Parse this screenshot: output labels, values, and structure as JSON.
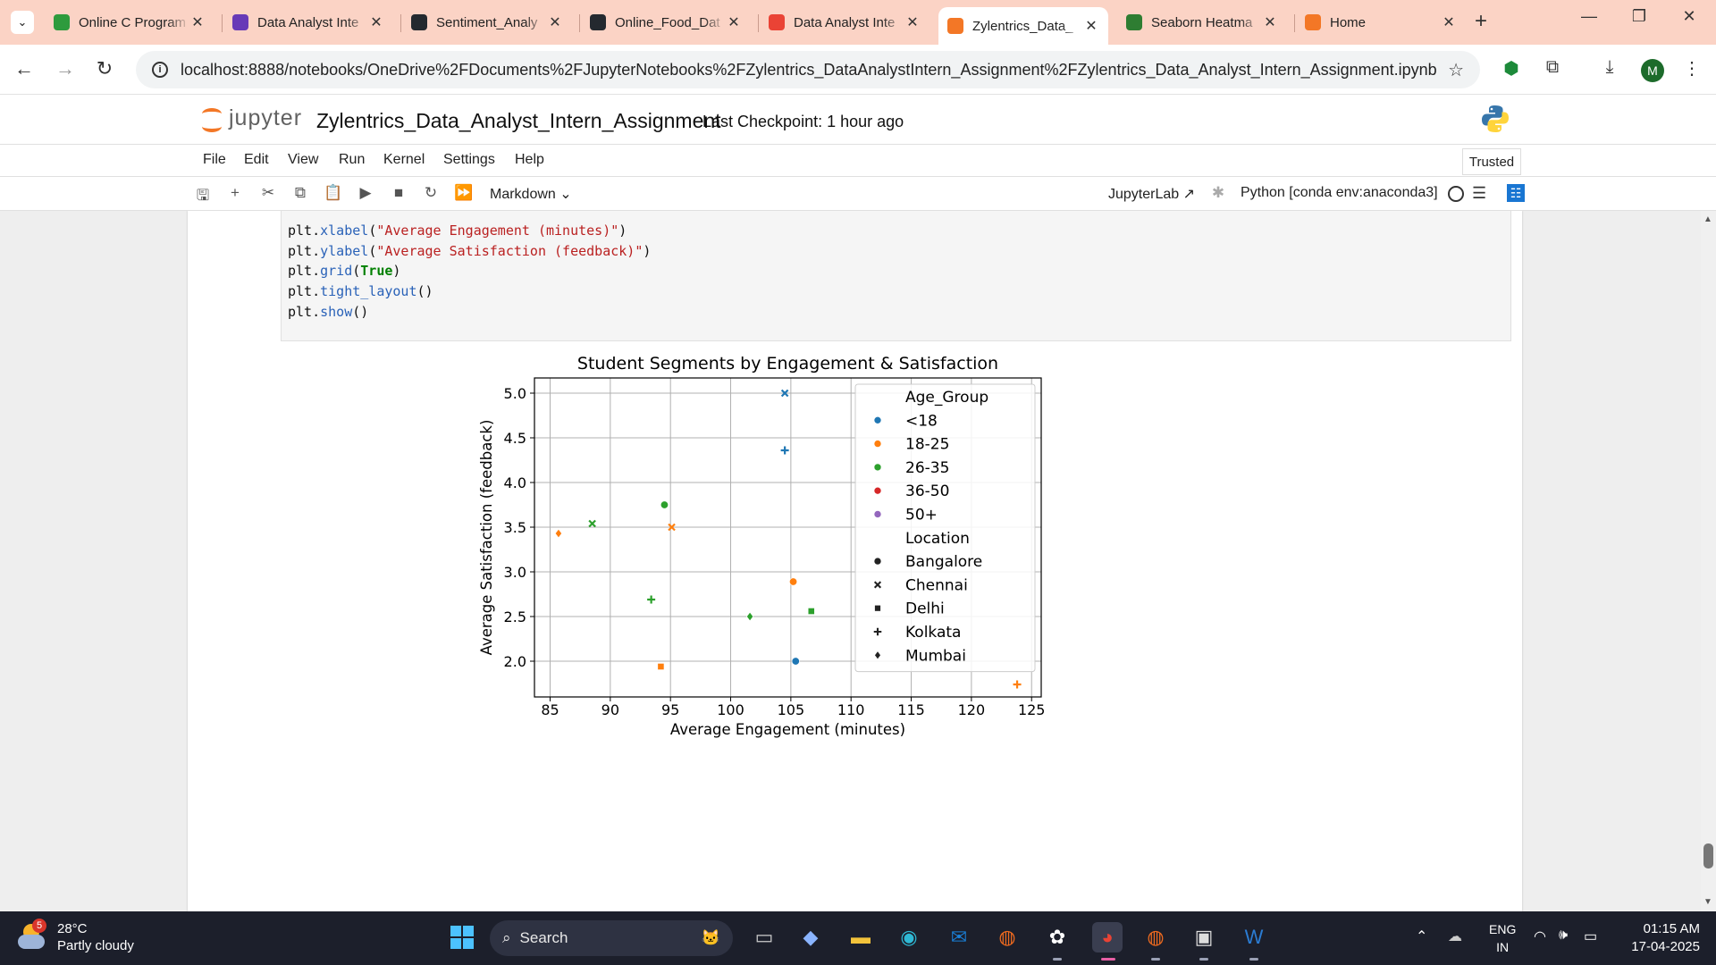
{
  "browser": {
    "tabs": [
      {
        "title": "Online C Program",
        "favicon": "online-compiler-icon",
        "color": "#2e9b3d"
      },
      {
        "title": "Data Analyst Inte",
        "favicon": "forms-icon",
        "color": "#673ab7"
      },
      {
        "title": "Sentiment_Analy",
        "favicon": "github-icon",
        "color": "#24292f"
      },
      {
        "title": "Online_Food_Dat",
        "favicon": "github-icon",
        "color": "#24292f"
      },
      {
        "title": "Data Analyst Inte",
        "favicon": "gmail-icon",
        "color": "#ea4335"
      },
      {
        "title": "Zylentrics_Data_",
        "favicon": "jupyter-icon",
        "color": "#f37726",
        "active": true
      },
      {
        "title": "Seaborn Heatma",
        "favicon": "seaborn-icon",
        "color": "#2e7d32"
      },
      {
        "title": "Home",
        "favicon": "jupyter-icon",
        "color": "#f37726"
      }
    ],
    "url": "localhost:8888/notebooks/OneDrive%2FDocuments%2FJupyterNotebooks%2FZylentrics_DataAnalystIntern_Assignment%2FZylentrics_Data_Analyst_Intern_Assignment.ipynb",
    "profile_initial": "M"
  },
  "jupyter": {
    "logo_text": "jupyter",
    "notebook_title": "Zylentrics_Data_Analyst_Intern_Assignment",
    "checkpoint": "Last Checkpoint: 1 hour ago",
    "menus": [
      "File",
      "Edit",
      "View",
      "Run",
      "Kernel",
      "Settings",
      "Help"
    ],
    "trusted": "Trusted",
    "cell_type": "Markdown",
    "jupyterlab_link": "JupyterLab",
    "kernel": "Python [conda env:anaconda3]"
  },
  "code_lines": [
    "plt.xlabel(\"Average Engagement (minutes)\")",
    "plt.ylabel(\"Average Satisfaction (feedback)\")",
    "plt.grid(True)",
    "plt.tight_layout()",
    "plt.show()"
  ],
  "chart_data": {
    "type": "scatter",
    "title": "Student Segments by Engagement & Satisfaction",
    "xlabel": "Average Engagement (minutes)",
    "ylabel": "Average Satisfaction (feedback)",
    "xlim": [
      83.7,
      125.8
    ],
    "ylim": [
      1.6,
      5.17
    ],
    "xticks": [
      85,
      90,
      95,
      100,
      105,
      110,
      115,
      120,
      125
    ],
    "yticks": [
      2.0,
      2.5,
      3.0,
      3.5,
      4.0,
      4.5,
      5.0
    ],
    "grid": true,
    "legend_position": "top-right",
    "hue_title": "Age_Group",
    "hue_levels": [
      {
        "name": "<18",
        "color": "#1f77b4"
      },
      {
        "name": "18-25",
        "color": "#ff7f0e"
      },
      {
        "name": "26-35",
        "color": "#2ca02c"
      },
      {
        "name": "36-50",
        "color": "#d62728"
      },
      {
        "name": "50+",
        "color": "#9467bd"
      }
    ],
    "style_title": "Location",
    "style_levels": [
      {
        "name": "Bangalore",
        "marker": "circle"
      },
      {
        "name": "Chennai",
        "marker": "x"
      },
      {
        "name": "Delhi",
        "marker": "square"
      },
      {
        "name": "Kolkata",
        "marker": "plus"
      },
      {
        "name": "Mumbai",
        "marker": "diamond"
      }
    ],
    "points": [
      {
        "x": 104.5,
        "y": 5.0,
        "age_group": "<18",
        "location": "Chennai"
      },
      {
        "x": 104.5,
        "y": 4.36,
        "age_group": "<18",
        "location": "Kolkata"
      },
      {
        "x": 94.5,
        "y": 3.75,
        "age_group": "26-35",
        "location": "Bangalore"
      },
      {
        "x": 88.5,
        "y": 3.54,
        "age_group": "26-35",
        "location": "Chennai"
      },
      {
        "x": 85.7,
        "y": 3.43,
        "age_group": "18-25",
        "location": "Mumbai"
      },
      {
        "x": 95.1,
        "y": 3.5,
        "age_group": "18-25",
        "location": "Chennai"
      },
      {
        "x": 105.2,
        "y": 2.89,
        "age_group": "18-25",
        "location": "Bangalore"
      },
      {
        "x": 93.4,
        "y": 2.69,
        "age_group": "26-35",
        "location": "Kolkata"
      },
      {
        "x": 106.7,
        "y": 2.56,
        "age_group": "26-35",
        "location": "Delhi"
      },
      {
        "x": 101.6,
        "y": 2.5,
        "age_group": "26-35",
        "location": "Mumbai"
      },
      {
        "x": 105.4,
        "y": 2.0,
        "age_group": "<18",
        "location": "Bangalore"
      },
      {
        "x": 94.2,
        "y": 1.94,
        "age_group": "18-25",
        "location": "Delhi"
      },
      {
        "x": 123.8,
        "y": 1.74,
        "age_group": "18-25",
        "location": "Kolkata"
      }
    ]
  },
  "taskbar": {
    "weather_temp": "28°C",
    "weather_desc": "Partly cloudy",
    "weather_badge": "5",
    "search_label": "Search",
    "lang_top": "ENG",
    "lang_bottom": "IN",
    "time": "01:15 AM",
    "date": "17-04-2025"
  }
}
